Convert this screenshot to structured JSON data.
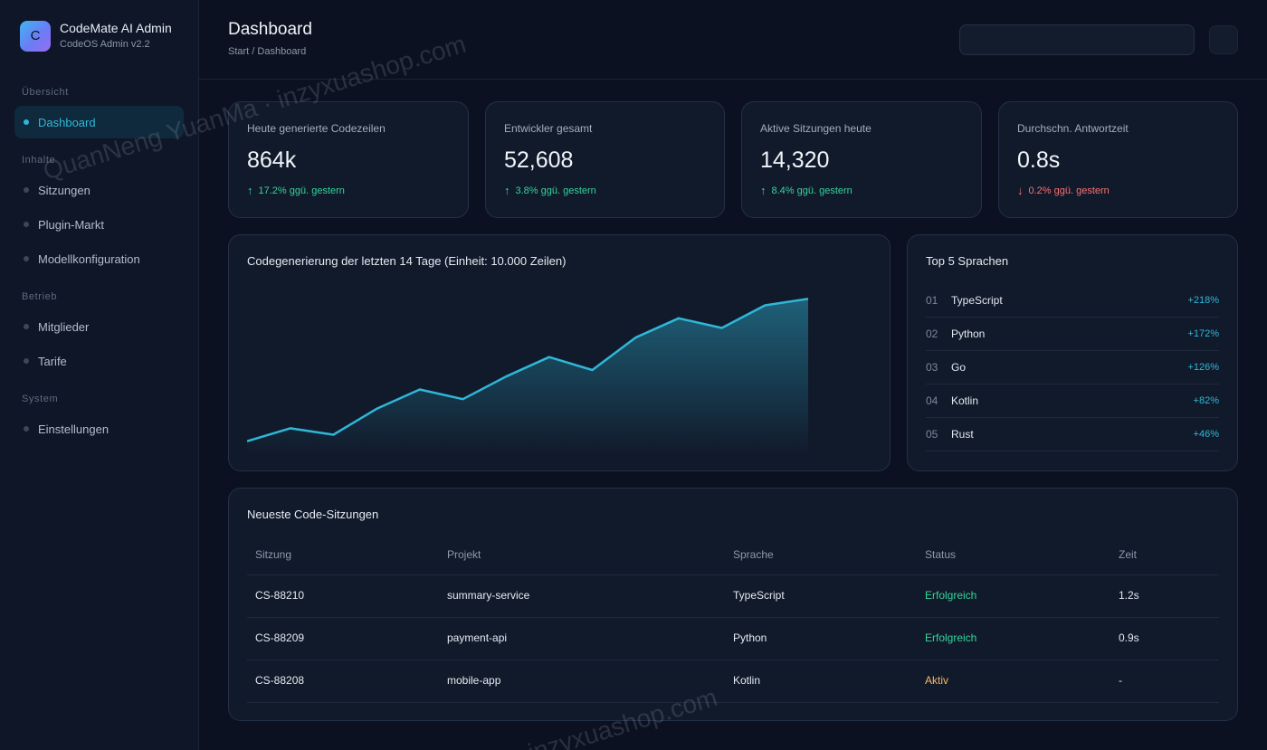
{
  "app": {
    "logo_letter": "C",
    "title": "CodeMate AI Admin",
    "subtitle": "CodeOS Admin v2.2"
  },
  "sidebar": {
    "sections": [
      {
        "label": "Übersicht"
      },
      {
        "label": "Inhalte"
      },
      {
        "label": "Betrieb"
      },
      {
        "label": "System"
      }
    ],
    "items": [
      {
        "label": "Dashboard",
        "active": true
      },
      {
        "label": "Sitzungen"
      },
      {
        "label": "Plugin-Markt"
      },
      {
        "label": "Modellkonfiguration"
      },
      {
        "label": "Mitglieder"
      },
      {
        "label": "Tarife"
      },
      {
        "label": "Einstellungen"
      }
    ]
  },
  "header": {
    "title": "Dashboard",
    "breadcrumb": "Start / Dashboard",
    "search_value": ""
  },
  "kpis": [
    {
      "label": "Heute generierte Codezeilen",
      "value": "864k",
      "change": "17.2% ggü. gestern",
      "direction": "up",
      "arrow": "↑"
    },
    {
      "label": "Entwickler gesamt",
      "value": "52,608",
      "change": "3.8% ggü. gestern",
      "direction": "up",
      "arrow": "↑"
    },
    {
      "label": "Aktive Sitzungen heute",
      "value": "14,320",
      "change": "8.4% ggü. gestern",
      "direction": "up",
      "arrow": "↑"
    },
    {
      "label": "Durchschn. Antwortzeit",
      "value": "0.8s",
      "change": "0.2% ggü. gestern",
      "direction": "down",
      "arrow": "↓"
    }
  ],
  "chart_panel": {
    "title": "Codegenerierung der letzten 14 Tage (Einheit: 10.000 Zeilen)"
  },
  "chart_data": {
    "type": "area",
    "title": "Codegenerierung der letzten 14 Tage (Einheit: 10.000 Zeilen)",
    "x": [
      1,
      2,
      3,
      4,
      5,
      6,
      7,
      8,
      9,
      10,
      11,
      12,
      13,
      14
    ],
    "values": [
      2,
      4,
      3,
      7,
      10,
      8.5,
      12,
      15,
      13,
      18,
      21,
      19.5,
      23,
      24
    ],
    "ylim": [
      0,
      26
    ],
    "color": "#2fb7d8",
    "grid": false,
    "xlabel": "",
    "ylabel": ""
  },
  "top_languages": {
    "title": "Top 5 Sprachen",
    "items": [
      {
        "rank": "01",
        "name": "TypeScript",
        "growth": "+218%"
      },
      {
        "rank": "02",
        "name": "Python",
        "growth": "+172%"
      },
      {
        "rank": "03",
        "name": "Go",
        "growth": "+126%"
      },
      {
        "rank": "04",
        "name": "Kotlin",
        "growth": "+82%"
      },
      {
        "rank": "05",
        "name": "Rust",
        "growth": "+46%"
      }
    ]
  },
  "sessions": {
    "title": "Neueste Code-Sitzungen",
    "columns": [
      "Sitzung",
      "Projekt",
      "Sprache",
      "Status",
      "Zeit"
    ],
    "rows": [
      {
        "id": "CS-88210",
        "project": "summary-service",
        "language": "TypeScript",
        "status": "Erfolgreich",
        "status_type": "success",
        "time": "1.2s"
      },
      {
        "id": "CS-88209",
        "project": "payment-api",
        "language": "Python",
        "status": "Erfolgreich",
        "status_type": "success",
        "time": "0.9s"
      },
      {
        "id": "CS-88208",
        "project": "mobile-app",
        "language": "Kotlin",
        "status": "Aktiv",
        "status_type": "active",
        "time": "-"
      }
    ]
  },
  "colors": {
    "accent": "#2fb7d8",
    "success": "#34d399",
    "danger": "#f87171",
    "warning": "#f5b762",
    "background": "#0b1120",
    "card": "#111a2b"
  },
  "watermarks": [
    "QuanNeng YuanMa · inzyxuashop.com",
    "inzyxuashop.com"
  ]
}
